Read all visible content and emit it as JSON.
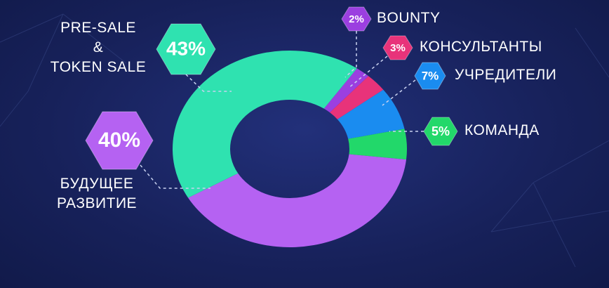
{
  "chart_data": {
    "type": "pie",
    "donut": true,
    "categories": [
      "BOUNTY",
      "КОНСУЛЬТАНТЫ",
      "УЧРЕДИТЕЛИ",
      "КОМАНДА",
      "БУДУЩЕЕ\nРАЗВИТИЕ",
      "PRE-SALE\n&\nTOKEN SALE"
    ],
    "values": [
      2,
      3,
      7,
      5,
      40,
      43
    ],
    "value_labels": [
      "2%",
      "3%",
      "7%",
      "5%",
      "40%",
      "43%"
    ],
    "colors": [
      "#9b3fe0",
      "#e8337a",
      "#1a8cf0",
      "#22d86a",
      "#b562f2",
      "#2fe2b0"
    ]
  }
}
